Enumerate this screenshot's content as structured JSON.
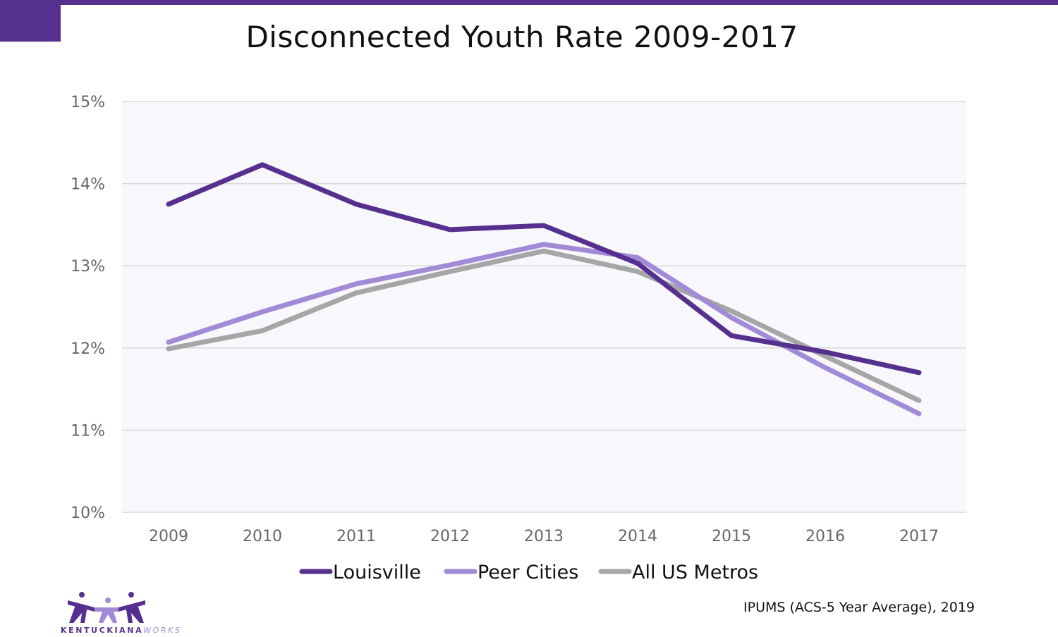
{
  "title": "Disconnected Youth Rate 2009-2017",
  "source": "IPUMS (ACS-5 Year Average), 2019",
  "logo": {
    "text_main": "KENTUCKIANA",
    "text_accent": "WORKS"
  },
  "colors": {
    "brand": "#56308f",
    "plot_bg": "#f8f7fc",
    "grid": "#d9d9d9"
  },
  "chart_data": {
    "type": "line",
    "title": "Disconnected Youth Rate 2009-2017",
    "xlabel": "",
    "ylabel": "",
    "categories": [
      "2009",
      "2010",
      "2011",
      "2012",
      "2013",
      "2014",
      "2015",
      "2016",
      "2017"
    ],
    "ylim": [
      10,
      15
    ],
    "yticks": [
      10,
      11,
      12,
      13,
      14,
      15
    ],
    "ytick_labels": [
      "10%",
      "11%",
      "12%",
      "13%",
      "14%",
      "15%"
    ],
    "grid": true,
    "legend": "bottom",
    "series": [
      {
        "name": "Louisville",
        "color": "#56308f",
        "values": [
          13.75,
          14.23,
          13.75,
          13.44,
          13.49,
          13.03,
          12.15,
          11.95,
          11.7
        ]
      },
      {
        "name": "Peer Cities",
        "color": "#a18ad6",
        "values": [
          12.07,
          12.44,
          12.78,
          13.01,
          13.26,
          13.1,
          12.37,
          11.76,
          11.2
        ]
      },
      {
        "name": "All US Metros",
        "color": "#a6a6a6",
        "values": [
          11.99,
          12.21,
          12.67,
          12.93,
          13.18,
          12.93,
          12.45,
          11.9,
          11.36
        ]
      }
    ]
  }
}
